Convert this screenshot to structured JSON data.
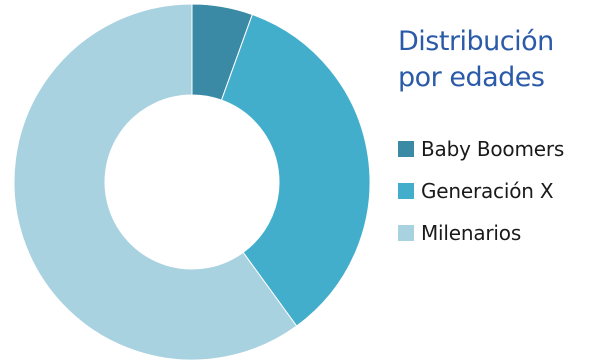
{
  "chart_data": {
    "type": "pie",
    "title": "Distribución por edades",
    "categories": [
      "Baby Boomers",
      "Generación X",
      "Milenarios"
    ],
    "values": [
      5.5,
      34.5,
      60
    ],
    "colors": [
      "#3a8aa6",
      "#43aecc",
      "#a9d2e0"
    ],
    "donut": true,
    "legend": "right"
  }
}
